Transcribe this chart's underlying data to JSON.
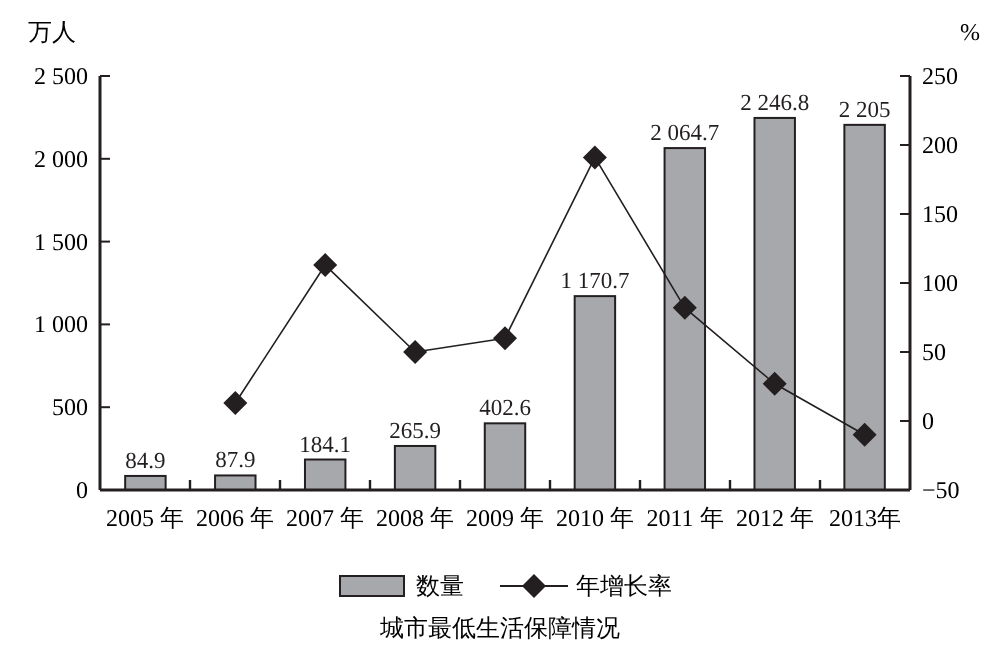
{
  "chart_data": {
    "type": "bar",
    "title": "城市最低生活保障情况",
    "ylabel": "万人",
    "y2label": "%",
    "categories": [
      "2005 年",
      "2006 年",
      "2007 年",
      "2008 年",
      "2009 年",
      "2010 年",
      "2011 年",
      "2012 年",
      "2013年"
    ],
    "series": [
      {
        "name": "数量",
        "color": "#a7a8ab",
        "values": [
          84.9,
          87.9,
          184.1,
          265.9,
          402.6,
          1170.7,
          2064.7,
          2246.8,
          2205
        ],
        "value_labels": [
          "84.9",
          "87.9",
          "184.1",
          "265.9",
          "402.6",
          "1 170.7",
          "2 064.7",
          "2 246.8",
          "2 205"
        ]
      },
      {
        "name": "年增长率",
        "type": "line",
        "axis": "y2",
        "color": "#231f20",
        "marker": "diamond",
        "values": [
          null,
          13,
          113,
          50,
          60,
          191,
          82,
          27,
          -10
        ]
      }
    ],
    "ylim": [
      0,
      2500
    ],
    "yticks": [
      0,
      {
        "value": 500,
        "label": "500"
      },
      {
        "value": 1000,
        "label": "1 000"
      },
      {
        "value": 1500,
        "label": "1 500"
      },
      {
        "value": 2000,
        "label": "2 000"
      },
      {
        "value": 2500,
        "label": "2 500"
      }
    ],
    "y2lim": [
      -50,
      250
    ],
    "y2ticks": [
      -50,
      0,
      50,
      100,
      150,
      200,
      250
    ],
    "grid": false,
    "legend": "bottom"
  }
}
